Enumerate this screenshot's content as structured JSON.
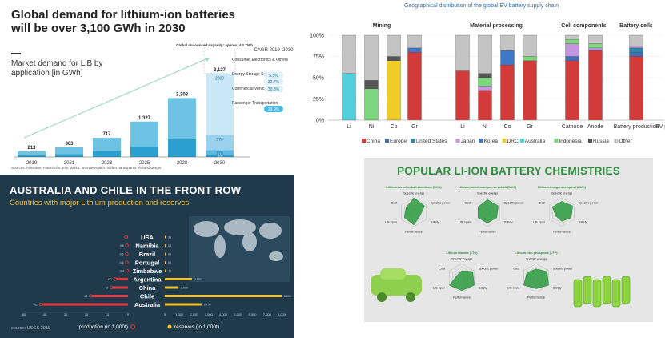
{
  "chart_data": [
    {
      "type": "bar",
      "title": "Global demand for lithium-ion batteries will be over 3,100 GWh in 2030",
      "subtitle": "Market demand for LiB by application [in GWh]",
      "categories": [
        "2019",
        "2021",
        "2023",
        "2025",
        "2028",
        "2030"
      ],
      "values": [
        213,
        363,
        717,
        1327,
        2208,
        3127
      ],
      "value_labels": [
        "213",
        "363",
        "717",
        "1,327",
        "2,208",
        "3,127"
      ],
      "segments_2030": [
        {
          "name": "Consumer Electronics & Others",
          "value": 82,
          "label": "82"
        },
        {
          "name": "Energy Storage Systems",
          "value": 175,
          "label": "175"
        },
        {
          "name": "Commercial Vehicles",
          "value": 570,
          "label": "570"
        },
        {
          "name": "Passenger Transportation",
          "value": 2300,
          "label": "2300"
        }
      ],
      "announced_capacity_label": "Global announced capacity: approx. 4.2 TWh",
      "cagr_title": "CAGR 2019–2030",
      "cagr_values": [
        "5.5%",
        "32.7%",
        "30.3%",
        "29.9%"
      ],
      "source": "Sources: Avicenne, Fraunhofer, IHS Markit, Interviews with market participants, Roland Berger",
      "ylim": [
        0,
        4200
      ]
    },
    {
      "type": "bar",
      "stacked": true,
      "title": "Geographical distribution of the global EV battery supply chain",
      "groups": [
        {
          "name": "Mining",
          "categories": [
            "Li",
            "Ni",
            "Co",
            "Gr"
          ]
        },
        {
          "name": "Material processing",
          "categories": [
            "Li",
            "Ni",
            "Co",
            "Gr"
          ]
        },
        {
          "name": "Cell components",
          "categories": [
            "Cathode",
            "Anode"
          ]
        },
        {
          "name": "Battery cells",
          "categories": [
            "Battery production"
          ]
        },
        {
          "name": "EVs",
          "categories": [
            "EV production"
          ]
        }
      ],
      "yticks": [
        "0%",
        "25%",
        "50%",
        "75%",
        "100%"
      ],
      "ylim": [
        0,
        100
      ],
      "legend": [
        "China",
        "Europe",
        "United States",
        "Japan",
        "Korea",
        "DRC",
        "Australia",
        "Indonesia",
        "Russia",
        "Other"
      ],
      "legend_position": "bottom",
      "series": [
        {
          "name": "China",
          "values": [
            0,
            0,
            0,
            80,
            58,
            35,
            65,
            70,
            70,
            82,
            75,
            55
          ]
        },
        {
          "name": "Europe",
          "values": [
            0,
            0,
            0,
            0,
            0,
            0,
            0,
            0,
            5,
            0,
            5,
            8
          ]
        },
        {
          "name": "United States",
          "values": [
            0,
            0,
            0,
            0,
            0,
            0,
            0,
            0,
            0,
            0,
            5,
            15
          ]
        },
        {
          "name": "Japan",
          "values": [
            0,
            0,
            0,
            0,
            0,
            5,
            0,
            0,
            15,
            3,
            2,
            0
          ]
        },
        {
          "name": "Korea",
          "values": [
            0,
            0,
            0,
            5,
            0,
            0,
            17,
            0,
            0,
            0,
            0,
            0
          ]
        },
        {
          "name": "DRC",
          "values": [
            0,
            0,
            70,
            0,
            0,
            0,
            0,
            0,
            0,
            0,
            0,
            0
          ]
        },
        {
          "name": "Australia",
          "values": [
            55,
            0,
            0,
            0,
            0,
            0,
            0,
            0,
            0,
            0,
            0,
            0
          ]
        },
        {
          "name": "Indonesia",
          "values": [
            0,
            37,
            0,
            0,
            0,
            10,
            0,
            5,
            5,
            5,
            0,
            15
          ]
        },
        {
          "name": "Russia",
          "values": [
            0,
            10,
            5,
            0,
            0,
            5,
            0,
            0,
            0,
            0,
            0,
            0
          ]
        },
        {
          "name": "Other",
          "values": [
            45,
            53,
            25,
            15,
            42,
            45,
            18,
            25,
            5,
            10,
            13,
            7
          ]
        }
      ],
      "colors": {
        "China": "#d33a3a",
        "Europe": "#3f6fb5",
        "United States": "#2c86a8",
        "Japan": "#c596e0",
        "Korea": "#3b78c7",
        "DRC": "#f0cc28",
        "Australia": "#53cfd9",
        "Indonesia": "#7dd87d",
        "Russia": "#555555",
        "Other": "#c4c4c4"
      }
    },
    {
      "type": "bar",
      "orientation": "horizontal",
      "title": "AUSTRALIA AND CHILE IN THE FRONT ROW",
      "subtitle": "Countries with major Lithium production and reserves",
      "categories": [
        "USA",
        "Namibia",
        "Brazil",
        "Portugal",
        "Zimbabwe",
        "Argentina",
        "China",
        "Chile",
        "Australia"
      ],
      "series": [
        {
          "name": "production (in 1,000t)",
          "values": [
            0.9,
            0.5,
            0.6,
            0.6,
            0.4,
            6.2,
            8,
            18,
            42
          ],
          "labels": [
            "",
            "0.5",
            "0.6",
            "0.6",
            "0.4",
            "6.2",
            "8",
            "18",
            "42"
          ]
        },
        {
          "name": "reserves (in 1,000t)",
          "values": [
            35,
            10,
            40,
            60,
            70,
            2000,
            1000,
            8600,
            2700
          ],
          "labels": [
            "35",
            "10",
            "40",
            "60",
            "70",
            "2,000",
            "1,000",
            "8,600",
            "2,700"
          ]
        }
      ],
      "production_ticks": [
        "50",
        "40",
        "30",
        "20",
        "10",
        "0"
      ],
      "reserves_ticks": [
        "0",
        "1,000",
        "2,000",
        "3,000",
        "4,000",
        "5,000",
        "6,000",
        "7,000",
        "8,000"
      ],
      "source": "source: USGS 2019",
      "colors": {
        "production": "#e8383d",
        "reserves": "#f4c12a",
        "background": "#203a4c"
      }
    },
    {
      "type": "radar",
      "title": "POPULAR LI-ION BATTERY CHEMISTRIES",
      "axes": [
        "Specific energy",
        "Specific power",
        "Safety",
        "Performance",
        "Life span",
        "Cost"
      ],
      "charts": [
        {
          "name": "Lithium-nickel-cobalt-aluminum (NCA)",
          "values": [
            4,
            3.5,
            2,
            3.5,
            3,
            2.5
          ]
        },
        {
          "name": "Lithium-nickel-manganese-cobalt (NMC)",
          "values": [
            3.5,
            3.5,
            3,
            3,
            3,
            3
          ]
        },
        {
          "name": "Lithium-manganese spinel (LMO)",
          "values": [
            3,
            3.5,
            3,
            2.5,
            2,
            3
          ]
        },
        {
          "name": "Lithium titanate (LTO)",
          "values": [
            2,
            3.5,
            4,
            3.5,
            4,
            1.5
          ]
        },
        {
          "name": "Lithium-iron phosphate (LFP)",
          "values": [
            2.5,
            3.5,
            4,
            3,
            4,
            3
          ]
        }
      ],
      "colors": {
        "fill": "#2a9a3e",
        "title": "#2f8f3f"
      }
    }
  ]
}
